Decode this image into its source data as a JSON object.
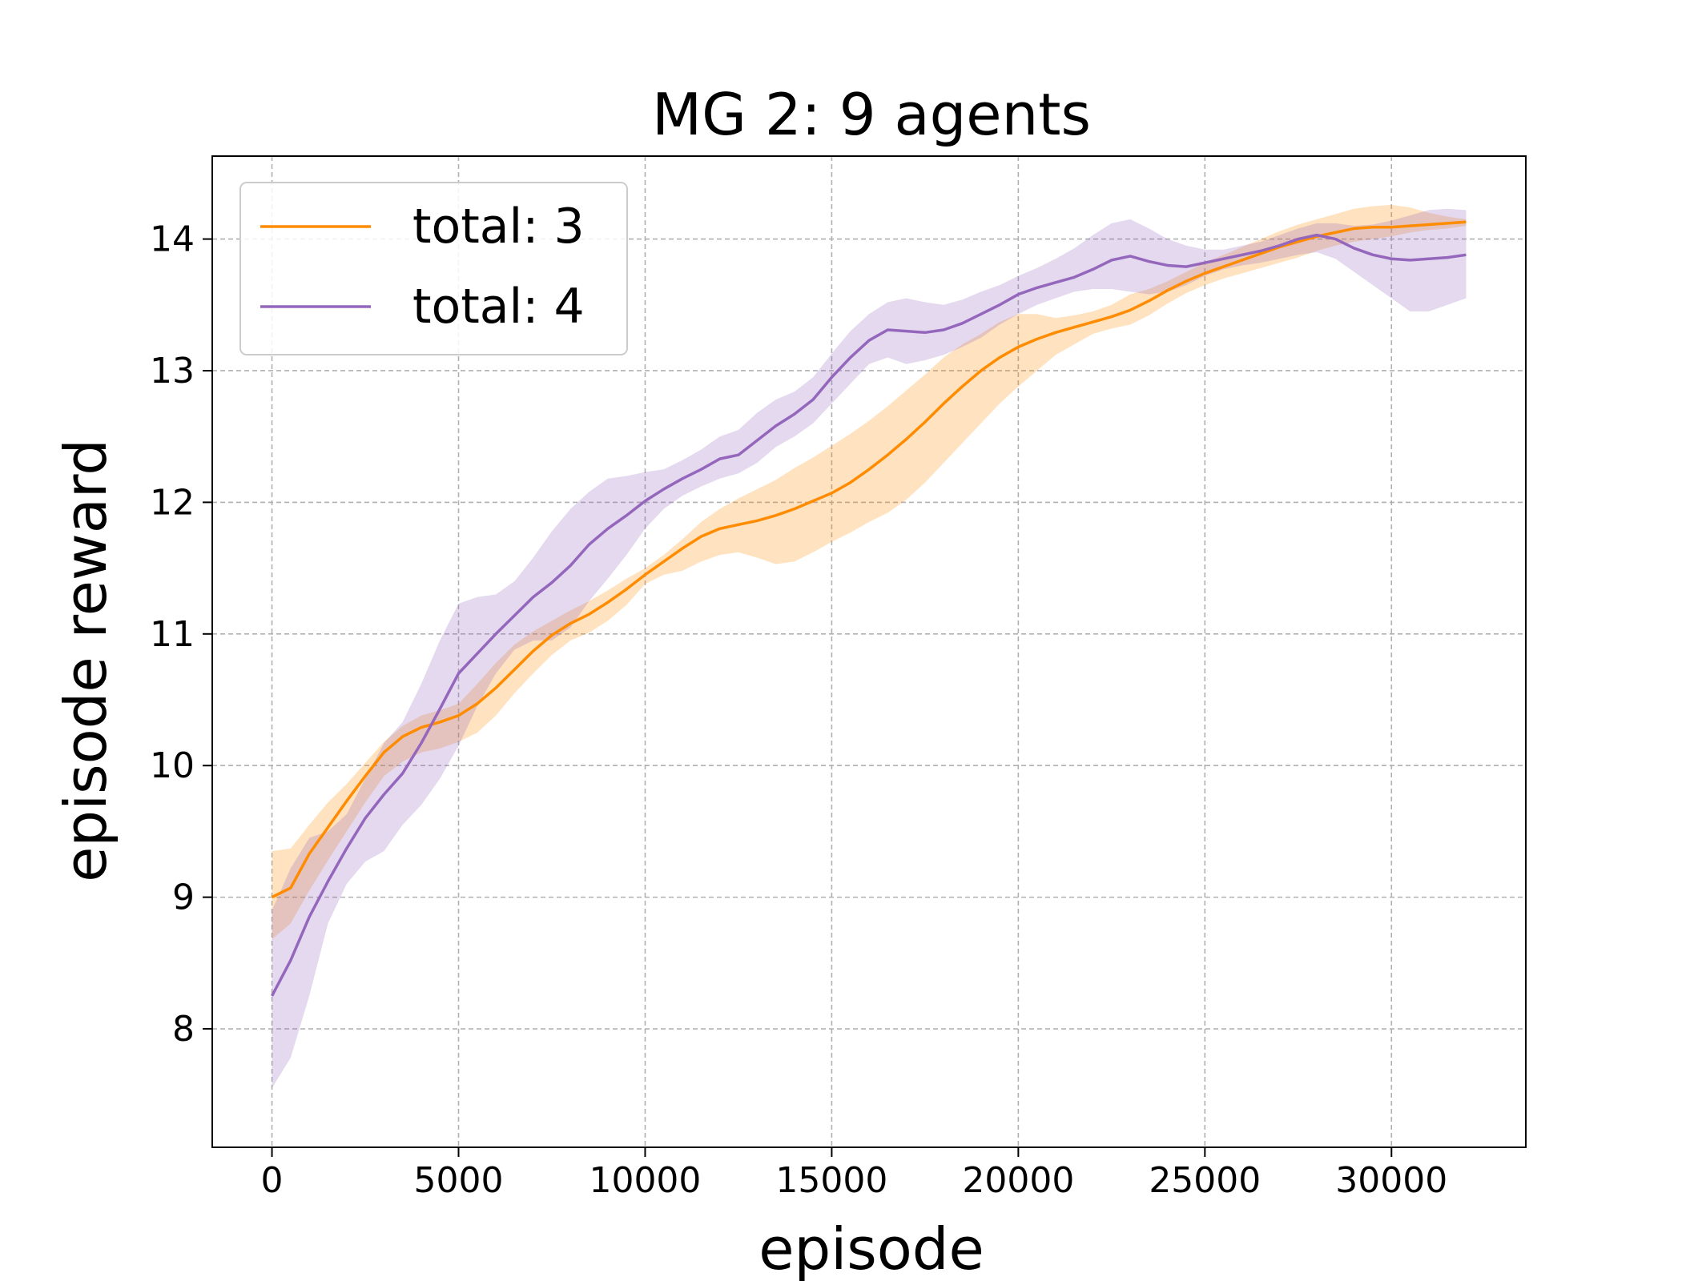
{
  "chart_data": {
    "type": "line",
    "title": "MG 2: 9 agents",
    "xlabel": "episode",
    "ylabel": "episode reward",
    "xlim": [
      -1600,
      33600
    ],
    "ylim": [
      7.1,
      14.63
    ],
    "xticks": [
      0,
      5000,
      10000,
      15000,
      20000,
      25000,
      30000
    ],
    "yticks": [
      8,
      9,
      10,
      11,
      12,
      13,
      14
    ],
    "grid": true,
    "legend_position": "upper-left",
    "series": [
      {
        "name": "total: 3",
        "color": "#ff8c00",
        "x": [
          0,
          500,
          1000,
          1500,
          2000,
          2500,
          3000,
          3500,
          4000,
          4500,
          5000,
          5500,
          6000,
          6500,
          7000,
          7500,
          8000,
          8500,
          9000,
          9500,
          10000,
          10500,
          11000,
          11500,
          12000,
          12500,
          13000,
          13500,
          14000,
          14500,
          15000,
          15500,
          16000,
          16500,
          17000,
          17500,
          18000,
          18500,
          19000,
          19500,
          20000,
          20500,
          21000,
          21500,
          22000,
          22500,
          23000,
          23500,
          24000,
          24500,
          25000,
          25500,
          26000,
          26500,
          27000,
          27500,
          28000,
          28500,
          29000,
          29500,
          30000,
          30500,
          31000,
          31500,
          32000
        ],
        "y": [
          9.0,
          9.07,
          9.33,
          9.53,
          9.73,
          9.92,
          10.1,
          10.22,
          10.29,
          10.33,
          10.38,
          10.47,
          10.59,
          10.73,
          10.87,
          10.99,
          11.08,
          11.15,
          11.24,
          11.34,
          11.45,
          11.55,
          11.65,
          11.74,
          11.8,
          11.83,
          11.86,
          11.9,
          11.95,
          12.01,
          12.07,
          12.15,
          12.25,
          12.36,
          12.48,
          12.61,
          12.75,
          12.88,
          13.0,
          13.1,
          13.18,
          13.24,
          13.29,
          13.33,
          13.37,
          13.41,
          13.46,
          13.53,
          13.61,
          13.68,
          13.74,
          13.79,
          13.84,
          13.89,
          13.94,
          13.98,
          14.02,
          14.05,
          14.08,
          14.09,
          14.09,
          14.1,
          14.11,
          14.12,
          14.13
        ],
        "lower": [
          8.68,
          8.8,
          9.05,
          9.28,
          9.5,
          9.72,
          9.92,
          10.03,
          10.1,
          10.13,
          10.18,
          10.25,
          10.38,
          10.55,
          10.7,
          10.84,
          10.95,
          11.01,
          11.1,
          11.22,
          11.38,
          11.45,
          11.48,
          11.55,
          11.6,
          11.62,
          11.58,
          11.53,
          11.55,
          11.62,
          11.7,
          11.77,
          11.85,
          11.92,
          12.02,
          12.15,
          12.3,
          12.45,
          12.6,
          12.75,
          12.88,
          13.0,
          13.12,
          13.2,
          13.28,
          13.32,
          13.35,
          13.42,
          13.51,
          13.59,
          13.65,
          13.7,
          13.74,
          13.78,
          13.82,
          13.86,
          13.91,
          13.95,
          13.98,
          14.0,
          14.02,
          14.05,
          14.07,
          14.08,
          14.1
        ],
        "upper": [
          9.35,
          9.37,
          9.55,
          9.72,
          9.86,
          10.02,
          10.18,
          10.3,
          10.38,
          10.42,
          10.47,
          10.62,
          10.78,
          10.92,
          11.02,
          11.1,
          11.18,
          11.25,
          11.33,
          11.42,
          11.5,
          11.6,
          11.72,
          11.85,
          11.95,
          12.03,
          12.1,
          12.17,
          12.26,
          12.34,
          12.43,
          12.52,
          12.62,
          12.73,
          12.85,
          12.97,
          13.1,
          13.2,
          13.28,
          13.37,
          13.43,
          13.43,
          13.4,
          13.42,
          13.45,
          13.5,
          13.58,
          13.62,
          13.68,
          13.75,
          13.82,
          13.88,
          13.94,
          14.0,
          14.06,
          14.11,
          14.15,
          14.19,
          14.23,
          14.25,
          14.26,
          14.24,
          14.2,
          14.17,
          14.15
        ]
      },
      {
        "name": "total: 4",
        "color": "#9467bd",
        "x": [
          0,
          500,
          1000,
          1500,
          2000,
          2500,
          3000,
          3500,
          4000,
          4500,
          5000,
          5500,
          6000,
          6500,
          7000,
          7500,
          8000,
          8500,
          9000,
          9500,
          10000,
          10500,
          11000,
          11500,
          12000,
          12500,
          13000,
          13500,
          14000,
          14500,
          15000,
          15500,
          16000,
          16500,
          17000,
          17500,
          18000,
          18500,
          19000,
          19500,
          20000,
          20500,
          21000,
          21500,
          22000,
          22500,
          23000,
          23500,
          24000,
          24500,
          25000,
          25500,
          26000,
          26500,
          27000,
          27500,
          28000,
          28500,
          29000,
          29500,
          30000,
          30500,
          31000,
          31500,
          32000
        ],
        "y": [
          8.25,
          8.52,
          8.85,
          9.12,
          9.37,
          9.6,
          9.78,
          9.94,
          10.17,
          10.43,
          10.7,
          10.85,
          11.0,
          11.14,
          11.28,
          11.39,
          11.52,
          11.68,
          11.8,
          11.9,
          12.01,
          12.1,
          12.18,
          12.25,
          12.33,
          12.36,
          12.47,
          12.58,
          12.67,
          12.78,
          12.95,
          13.1,
          13.23,
          13.31,
          13.3,
          13.29,
          13.31,
          13.36,
          13.43,
          13.5,
          13.58,
          13.63,
          13.67,
          13.71,
          13.77,
          13.84,
          13.87,
          13.83,
          13.8,
          13.79,
          13.82,
          13.85,
          13.88,
          13.91,
          13.95,
          14.0,
          14.03,
          14.0,
          13.93,
          13.88,
          13.85,
          13.84,
          13.85,
          13.86,
          13.88
        ],
        "lower": [
          7.55,
          7.78,
          8.25,
          8.8,
          9.1,
          9.27,
          9.35,
          9.55,
          9.7,
          9.9,
          10.15,
          10.45,
          10.7,
          10.88,
          10.95,
          10.95,
          11.05,
          11.25,
          11.42,
          11.6,
          11.8,
          11.95,
          12.05,
          12.12,
          12.18,
          12.22,
          12.3,
          12.42,
          12.5,
          12.6,
          12.75,
          12.9,
          13.05,
          13.1,
          13.05,
          13.08,
          13.12,
          13.18,
          13.25,
          13.35,
          13.43,
          13.5,
          13.55,
          13.6,
          13.62,
          13.62,
          13.6,
          13.58,
          13.6,
          13.65,
          13.72,
          13.77,
          13.8,
          13.82,
          13.85,
          13.88,
          13.9,
          13.85,
          13.75,
          13.65,
          13.55,
          13.45,
          13.45,
          13.5,
          13.55
        ],
        "upper": [
          8.9,
          9.22,
          9.45,
          9.5,
          9.63,
          9.9,
          10.17,
          10.33,
          10.62,
          10.95,
          11.23,
          11.28,
          11.3,
          11.4,
          11.58,
          11.78,
          11.95,
          12.08,
          12.18,
          12.2,
          12.23,
          12.25,
          12.32,
          12.4,
          12.5,
          12.55,
          12.68,
          12.78,
          12.84,
          12.95,
          13.13,
          13.3,
          13.43,
          13.52,
          13.55,
          13.52,
          13.5,
          13.54,
          13.6,
          13.65,
          13.72,
          13.78,
          13.85,
          13.93,
          14.03,
          14.12,
          14.15,
          14.08,
          14.0,
          13.95,
          13.92,
          13.92,
          13.95,
          13.98,
          14.03,
          14.08,
          14.12,
          14.12,
          14.1,
          14.11,
          14.14,
          14.18,
          14.22,
          14.23,
          14.22
        ]
      }
    ]
  }
}
